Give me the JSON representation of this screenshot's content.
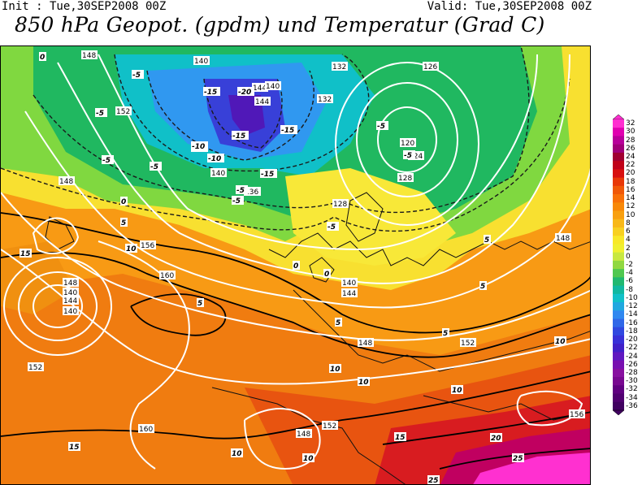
{
  "header": {
    "init": "Init : Tue,30SEP2008 00Z",
    "valid": "Valid: Tue,30SEP2008 00Z",
    "title": "850 hPa Geopot. (gpdm) und Temperatur (Grad C)"
  },
  "legend": {
    "values": [
      "32",
      "30",
      "28",
      "26",
      "24",
      "22",
      "20",
      "18",
      "16",
      "14",
      "12",
      "10",
      "8",
      "6",
      "4",
      "2",
      "0",
      "-2",
      "-4",
      "-6",
      "-8",
      "-10",
      "-12",
      "-14",
      "-16",
      "-18",
      "-20",
      "-22",
      "-24",
      "-26",
      "-28",
      "-30",
      "-32",
      "-34",
      "-36"
    ],
    "colors": [
      "#ff2fd0",
      "#e000b0",
      "#b8009a",
      "#a00078",
      "#a00030",
      "#c00018",
      "#d81010",
      "#e83808",
      "#f05808",
      "#f87008",
      "#f88808",
      "#f8a010",
      "#f8b818",
      "#f8d020",
      "#f8e828",
      "#f0f030",
      "#c8e840",
      "#90d840",
      "#50c850",
      "#20b870",
      "#10b8a0",
      "#10c0c8",
      "#20a8e0",
      "#3088f0",
      "#3068e8",
      "#3048e0",
      "#3830d8",
      "#4020c8",
      "#6018c0",
      "#7810b0",
      "#8810a0",
      "#780890",
      "#600080",
      "#500070",
      "#400060"
    ]
  },
  "map": {
    "height_labels": [
      "148",
      "140",
      "126",
      "132",
      "152",
      "144",
      "140",
      "120",
      "124",
      "128",
      "136",
      "140",
      "144",
      "132",
      "148",
      "128",
      "140",
      "144",
      "148",
      "140",
      "148",
      "156",
      "160",
      "152",
      "160",
      "152",
      "148",
      "156",
      "148",
      "144",
      "140",
      "152",
      "136"
    ],
    "temp_labels": [
      "0",
      "-5",
      "-15",
      "-20",
      "-15",
      "-15",
      "-10",
      "-10",
      "-5",
      "-5",
      "-5",
      "-5",
      "-5",
      "0",
      "5",
      "10",
      "15",
      "5",
      "10",
      "10",
      "5",
      "5",
      "0",
      "5",
      "10",
      "15",
      "10",
      "10",
      "20",
      "25",
      "25",
      "-10",
      "-5",
      "10",
      "15",
      "-5",
      "-15",
      "-5",
      "5",
      "0"
    ]
  }
}
